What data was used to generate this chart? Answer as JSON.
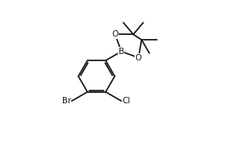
{
  "bg_color": "#ffffff",
  "line_color": "#1a1a1a",
  "line_width": 1.3,
  "font_size": 7.5,
  "fig_width": 2.9,
  "fig_height": 1.8,
  "dpi": 100,
  "label_B": "B",
  "label_O": "O",
  "label_Cl": "Cl",
  "label_Br": "Br"
}
